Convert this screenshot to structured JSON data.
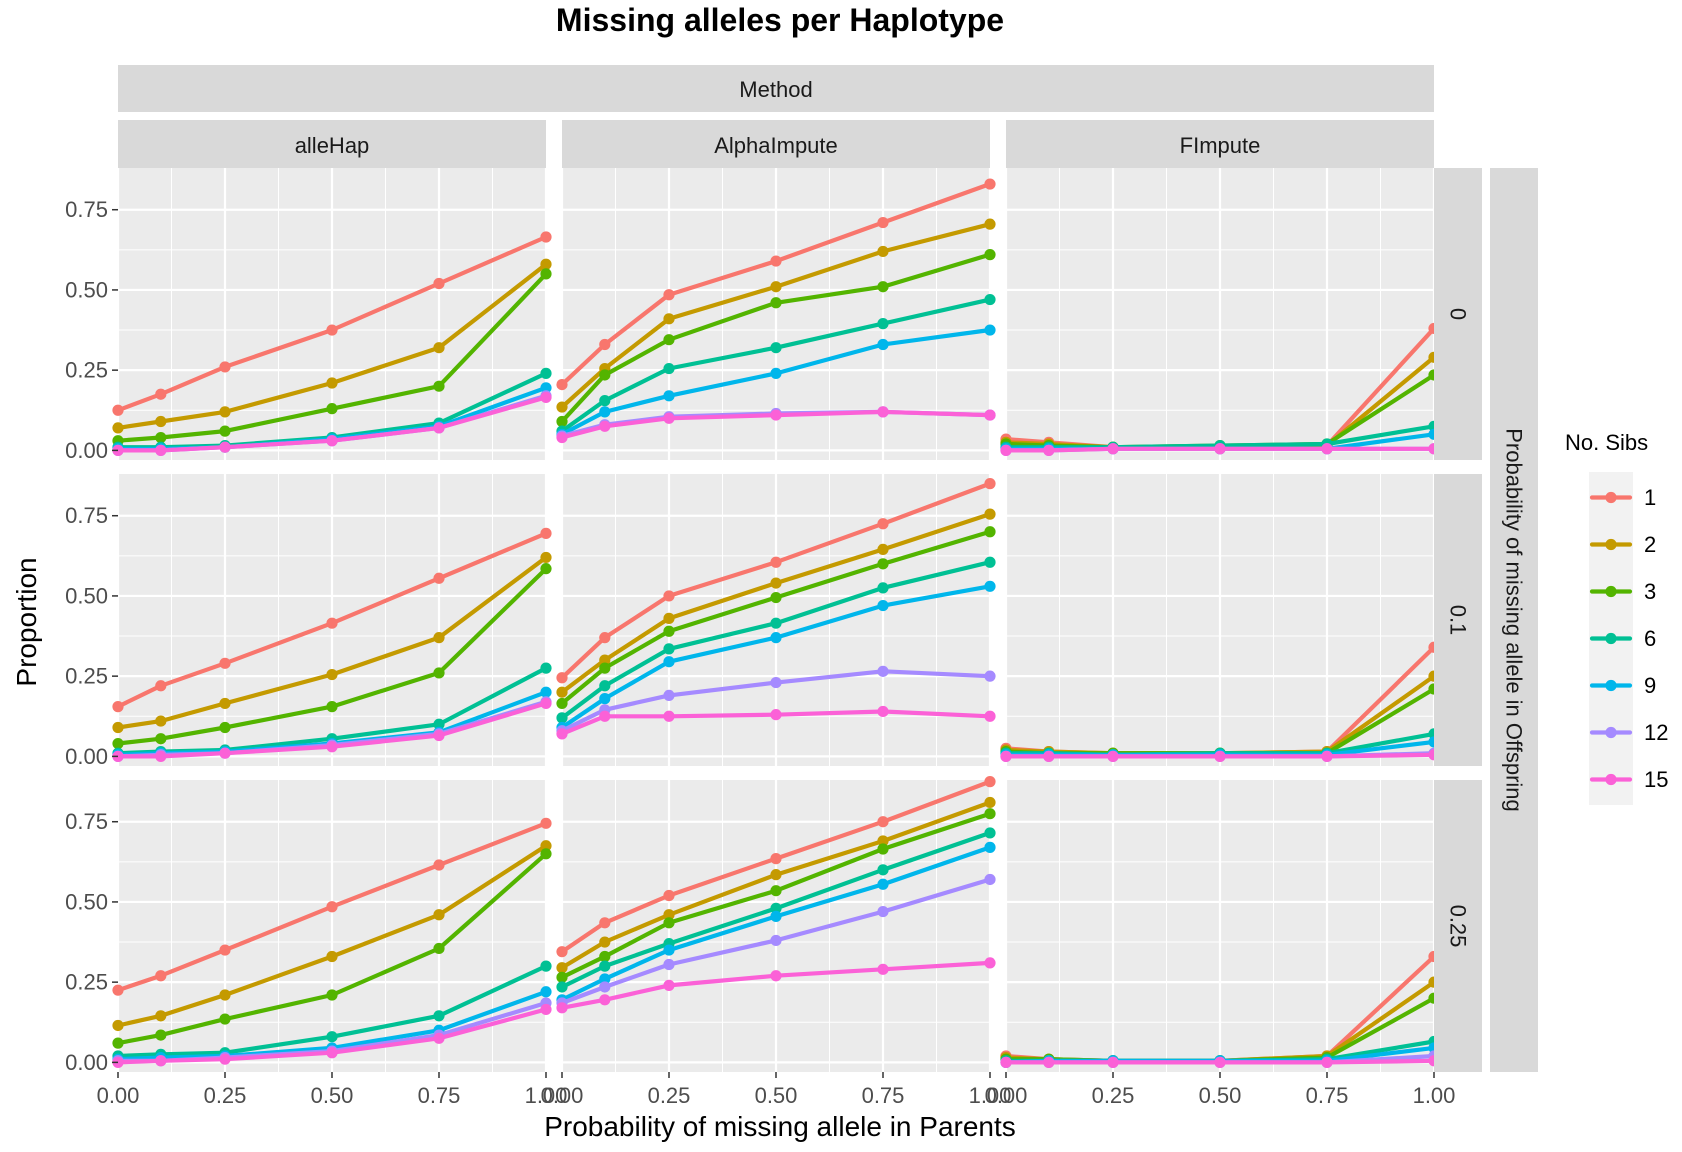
{
  "chart_data": {
    "type": "line",
    "title": "Missing alleles per Haplotype",
    "xlabel": "Probability of missing allele in Parents",
    "ylabel": "Proportion",
    "column_group_label": "Method",
    "row_group_label": "Probability of missing allele in Offspring",
    "columns": [
      "alleHap",
      "AlphaImpute",
      "FImpute"
    ],
    "rows": [
      "0",
      "0.1",
      "0.25"
    ],
    "x": [
      0,
      0.1,
      0.25,
      0.5,
      0.75,
      1
    ],
    "xlim": [
      0,
      1
    ],
    "ylim": [
      -0.03,
      0.88
    ],
    "x_ticks": [
      0,
      0.25,
      0.5,
      0.75,
      1
    ],
    "x_tick_labels": [
      "0.00",
      "0.25",
      "0.50",
      "0.75",
      "1.00"
    ],
    "y_ticks": [
      0,
      0.25,
      0.5,
      0.75
    ],
    "y_tick_labels": [
      "0.00",
      "0.25",
      "0.50",
      "0.75"
    ],
    "grid": true,
    "legend": {
      "title": "No. Sibs",
      "placement": "right",
      "entries": [
        {
          "label": "1",
          "color": "#F8766D"
        },
        {
          "label": "2",
          "color": "#C49A00"
        },
        {
          "label": "3",
          "color": "#53B400"
        },
        {
          "label": "6",
          "color": "#00C094"
        },
        {
          "label": "9",
          "color": "#00B6EB"
        },
        {
          "label": "12",
          "color": "#A58AFF"
        },
        {
          "label": "15",
          "color": "#FB61D7"
        }
      ]
    },
    "panels": [
      {
        "column": "alleHap",
        "row": "0",
        "series": [
          {
            "name": "1",
            "values": [
              0.125,
              0.175,
              0.26,
              0.375,
              0.52,
              0.665
            ]
          },
          {
            "name": "2",
            "values": [
              0.07,
              0.09,
              0.12,
              0.21,
              0.32,
              0.58
            ]
          },
          {
            "name": "3",
            "values": [
              0.03,
              0.04,
              0.06,
              0.13,
              0.2,
              0.55
            ]
          },
          {
            "name": "6",
            "values": [
              0.01,
              0.01,
              0.015,
              0.04,
              0.085,
              0.24
            ]
          },
          {
            "name": "9",
            "values": [
              0.005,
              0.005,
              0.01,
              0.035,
              0.075,
              0.195
            ]
          },
          {
            "name": "12",
            "values": [
              0.0,
              0.0,
              0.01,
              0.03,
              0.07,
              0.17
            ]
          },
          {
            "name": "15",
            "values": [
              0.0,
              0.0,
              0.01,
              0.03,
              0.07,
              0.165
            ]
          }
        ]
      },
      {
        "column": "AlphaImpute",
        "row": "0",
        "series": [
          {
            "name": "1",
            "values": [
              0.205,
              0.33,
              0.485,
              0.59,
              0.71,
              0.83
            ]
          },
          {
            "name": "2",
            "values": [
              0.135,
              0.255,
              0.41,
              0.51,
              0.62,
              0.705
            ]
          },
          {
            "name": "3",
            "values": [
              0.09,
              0.235,
              0.345,
              0.46,
              0.51,
              0.61
            ]
          },
          {
            "name": "6",
            "values": [
              0.06,
              0.155,
              0.255,
              0.32,
              0.395,
              0.47
            ]
          },
          {
            "name": "9",
            "values": [
              0.05,
              0.12,
              0.17,
              0.24,
              0.33,
              0.375
            ]
          },
          {
            "name": "12",
            "values": [
              0.045,
              0.08,
              0.105,
              0.115,
              0.12,
              0.11
            ]
          },
          {
            "name": "15",
            "values": [
              0.04,
              0.075,
              0.1,
              0.11,
              0.12,
              0.11
            ]
          }
        ]
      },
      {
        "column": "FImpute",
        "row": "0",
        "series": [
          {
            "name": "1",
            "values": [
              0.035,
              0.025,
              0.01,
              0.01,
              0.015,
              0.38
            ]
          },
          {
            "name": "2",
            "values": [
              0.025,
              0.02,
              0.01,
              0.01,
              0.015,
              0.29
            ]
          },
          {
            "name": "3",
            "values": [
              0.02,
              0.015,
              0.01,
              0.015,
              0.02,
              0.235
            ]
          },
          {
            "name": "6",
            "values": [
              0.01,
              0.01,
              0.01,
              0.015,
              0.02,
              0.075
            ]
          },
          {
            "name": "9",
            "values": [
              0.005,
              0.005,
              0.005,
              0.005,
              0.005,
              0.05
            ]
          },
          {
            "name": "12",
            "values": [
              0.0,
              0.0,
              0.005,
              0.005,
              0.005,
              0.005
            ]
          },
          {
            "name": "15",
            "values": [
              0.0,
              0.0,
              0.005,
              0.005,
              0.005,
              0.005
            ]
          }
        ]
      },
      {
        "column": "alleHap",
        "row": "0.1",
        "series": [
          {
            "name": "1",
            "values": [
              0.155,
              0.22,
              0.29,
              0.415,
              0.555,
              0.695
            ]
          },
          {
            "name": "2",
            "values": [
              0.09,
              0.11,
              0.165,
              0.255,
              0.37,
              0.62
            ]
          },
          {
            "name": "3",
            "values": [
              0.04,
              0.055,
              0.09,
              0.155,
              0.26,
              0.585
            ]
          },
          {
            "name": "6",
            "values": [
              0.01,
              0.015,
              0.02,
              0.055,
              0.1,
              0.275
            ]
          },
          {
            "name": "9",
            "values": [
              0.005,
              0.01,
              0.015,
              0.04,
              0.075,
              0.2
            ]
          },
          {
            "name": "12",
            "values": [
              0.0,
              0.005,
              0.01,
              0.035,
              0.07,
              0.17
            ]
          },
          {
            "name": "15",
            "values": [
              0.0,
              0.0,
              0.01,
              0.03,
              0.065,
              0.165
            ]
          }
        ]
      },
      {
        "column": "AlphaImpute",
        "row": "0.1",
        "series": [
          {
            "name": "1",
            "values": [
              0.245,
              0.37,
              0.5,
              0.605,
              0.725,
              0.85
            ]
          },
          {
            "name": "2",
            "values": [
              0.2,
              0.3,
              0.43,
              0.54,
              0.645,
              0.755
            ]
          },
          {
            "name": "3",
            "values": [
              0.165,
              0.275,
              0.39,
              0.495,
              0.6,
              0.7
            ]
          },
          {
            "name": "6",
            "values": [
              0.12,
              0.22,
              0.335,
              0.415,
              0.525,
              0.605
            ]
          },
          {
            "name": "9",
            "values": [
              0.09,
              0.18,
              0.295,
              0.37,
              0.47,
              0.53
            ]
          },
          {
            "name": "12",
            "values": [
              0.08,
              0.145,
              0.19,
              0.23,
              0.265,
              0.25
            ]
          },
          {
            "name": "15",
            "values": [
              0.07,
              0.125,
              0.125,
              0.13,
              0.14,
              0.125
            ]
          }
        ]
      },
      {
        "column": "FImpute",
        "row": "0.1",
        "series": [
          {
            "name": "1",
            "values": [
              0.025,
              0.015,
              0.01,
              0.01,
              0.015,
              0.34
            ]
          },
          {
            "name": "2",
            "values": [
              0.02,
              0.015,
              0.01,
              0.01,
              0.015,
              0.25
            ]
          },
          {
            "name": "3",
            "values": [
              0.015,
              0.01,
              0.01,
              0.01,
              0.01,
              0.21
            ]
          },
          {
            "name": "6",
            "values": [
              0.01,
              0.01,
              0.005,
              0.01,
              0.01,
              0.07
            ]
          },
          {
            "name": "9",
            "values": [
              0.005,
              0.005,
              0.005,
              0.005,
              0.005,
              0.045
            ]
          },
          {
            "name": "12",
            "values": [
              0.0,
              0.0,
              0.0,
              0.0,
              0.0,
              0.01
            ]
          },
          {
            "name": "15",
            "values": [
              0.0,
              0.0,
              0.0,
              0.0,
              0.0,
              0.005
            ]
          }
        ]
      },
      {
        "column": "alleHap",
        "row": "0.25",
        "series": [
          {
            "name": "1",
            "values": [
              0.225,
              0.27,
              0.35,
              0.485,
              0.615,
              0.745
            ]
          },
          {
            "name": "2",
            "values": [
              0.115,
              0.145,
              0.21,
              0.33,
              0.46,
              0.675
            ]
          },
          {
            "name": "3",
            "values": [
              0.06,
              0.085,
              0.135,
              0.21,
              0.355,
              0.65
            ]
          },
          {
            "name": "6",
            "values": [
              0.02,
              0.025,
              0.03,
              0.08,
              0.145,
              0.3
            ]
          },
          {
            "name": "9",
            "values": [
              0.01,
              0.015,
              0.02,
              0.045,
              0.1,
              0.22
            ]
          },
          {
            "name": "12",
            "values": [
              0.005,
              0.005,
              0.015,
              0.035,
              0.085,
              0.185
            ]
          },
          {
            "name": "15",
            "values": [
              0.0,
              0.005,
              0.01,
              0.03,
              0.075,
              0.165
            ]
          }
        ]
      },
      {
        "column": "AlphaImpute",
        "row": "0.25",
        "series": [
          {
            "name": "1",
            "values": [
              0.345,
              0.435,
              0.52,
              0.635,
              0.75,
              0.875
            ]
          },
          {
            "name": "2",
            "values": [
              0.295,
              0.375,
              0.46,
              0.585,
              0.69,
              0.81
            ]
          },
          {
            "name": "3",
            "values": [
              0.265,
              0.33,
              0.435,
              0.535,
              0.665,
              0.775
            ]
          },
          {
            "name": "6",
            "values": [
              0.235,
              0.3,
              0.37,
              0.48,
              0.6,
              0.715
            ]
          },
          {
            "name": "9",
            "values": [
              0.195,
              0.26,
              0.35,
              0.455,
              0.555,
              0.67
            ]
          },
          {
            "name": "12",
            "values": [
              0.185,
              0.235,
              0.305,
              0.38,
              0.47,
              0.57
            ]
          },
          {
            "name": "15",
            "values": [
              0.17,
              0.195,
              0.24,
              0.27,
              0.29,
              0.31
            ]
          }
        ]
      },
      {
        "column": "FImpute",
        "row": "0.25",
        "series": [
          {
            "name": "1",
            "values": [
              0.02,
              0.01,
              0.005,
              0.005,
              0.02,
              0.33
            ]
          },
          {
            "name": "2",
            "values": [
              0.015,
              0.01,
              0.005,
              0.005,
              0.02,
              0.25
            ]
          },
          {
            "name": "3",
            "values": [
              0.01,
              0.01,
              0.005,
              0.005,
              0.015,
              0.2
            ]
          },
          {
            "name": "6",
            "values": [
              0.005,
              0.005,
              0.005,
              0.005,
              0.01,
              0.065
            ]
          },
          {
            "name": "9",
            "values": [
              0.0,
              0.005,
              0.005,
              0.005,
              0.005,
              0.045
            ]
          },
          {
            "name": "12",
            "values": [
              0.0,
              0.0,
              0.0,
              0.0,
              0.0,
              0.02
            ]
          },
          {
            "name": "15",
            "values": [
              0.0,
              0.0,
              0.0,
              0.0,
              0.0,
              0.005
            ]
          }
        ]
      }
    ]
  }
}
